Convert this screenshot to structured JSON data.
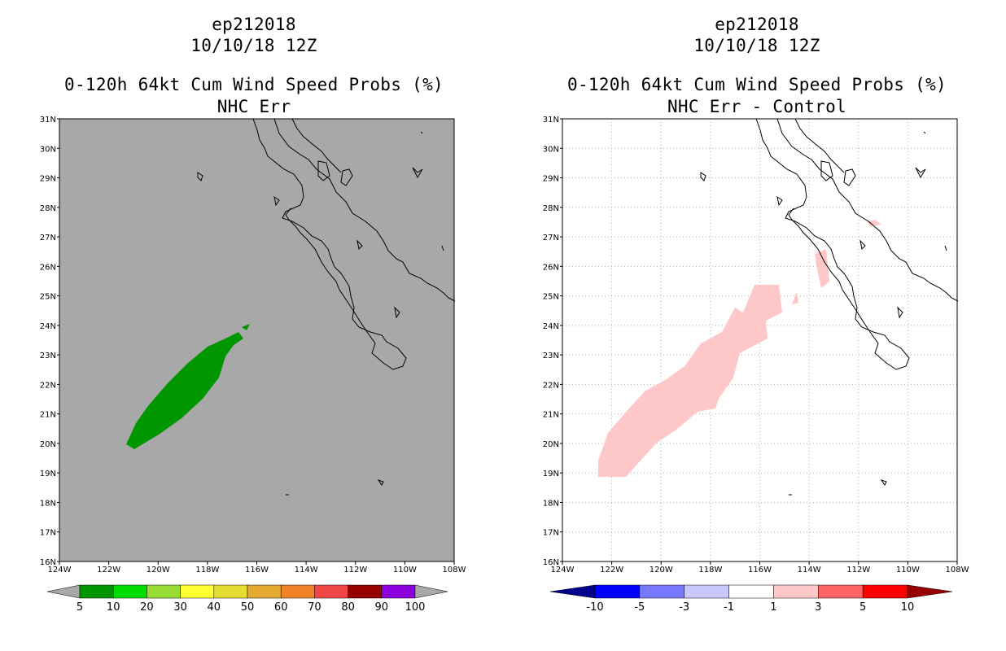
{
  "left_panel": {
    "title_line1": "ep212018",
    "title_line2": "10/10/18 12Z",
    "title_line3": "0-120h 64kt Cum Wind Speed Probs (%)",
    "title_line4": "NHC Err",
    "background_color": "#a8a8a8",
    "contour_color": "#009600",
    "colorbar_labels": [
      "5",
      "10",
      "20",
      "30",
      "40",
      "50",
      "60",
      "70",
      "80",
      "90",
      "100"
    ],
    "colorbar_colors": [
      "#009600",
      "#00dc00",
      "#96dc32",
      "#ffff32",
      "#e6dc32",
      "#e6aa32",
      "#f08228",
      "#f04646",
      "#960000",
      "#8c00dc"
    ]
  },
  "right_panel": {
    "title_line1": "ep212018",
    "title_line2": "10/10/18 12Z",
    "title_line3": "0-120h 64kt Cum Wind Speed Probs (%)",
    "title_line4": "NHC Err - Control",
    "background_color": "#ffffff",
    "contour_color": "#ffc8c8",
    "colorbar_labels": [
      "-10",
      "-5",
      "-3",
      "-1",
      "1",
      "3",
      "5",
      "10"
    ],
    "colorbar_colors": [
      "#00008c",
      "#0000ff",
      "#7878ff",
      "#c8c8ff",
      "#ffffff",
      "#ffc8c8",
      "#ff6464",
      "#ff0000",
      "#960000"
    ]
  },
  "axes": {
    "lat_labels": [
      "31N",
      "30N",
      "29N",
      "28N",
      "27N",
      "26N",
      "25N",
      "24N",
      "23N",
      "22N",
      "21N",
      "20N",
      "19N",
      "18N",
      "17N",
      "16N"
    ],
    "lon_labels": [
      "124W",
      "122W",
      "120W",
      "118W",
      "116W",
      "114W",
      "112W",
      "110W",
      "108W"
    ]
  }
}
